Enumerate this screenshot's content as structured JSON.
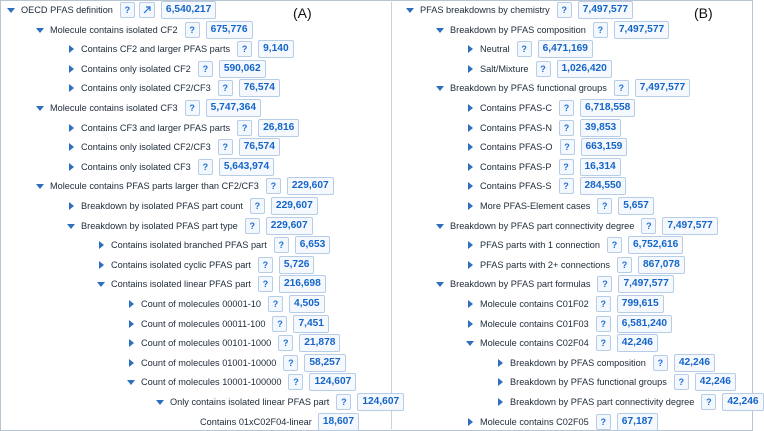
{
  "panels": {
    "left_label": "(A)",
    "right_label": "(B)"
  },
  "icons": {
    "help": "?",
    "expanded": "caret-down-icon",
    "collapsed": "caret-right-icon",
    "open_link": "external-link-icon"
  },
  "colors": {
    "accent": "#1565c9",
    "arrow": "#2f6fbf"
  },
  "left_tree": [
    {
      "label": "OECD PFAS definition",
      "count": "6,540,217",
      "state": "expanded",
      "ext": true
    },
    {
      "label": "Molecule contains isolated CF2",
      "count": "675,776",
      "state": "expanded"
    },
    {
      "label": "Contains CF2 and larger PFAS parts",
      "count": "9,140",
      "state": "collapsed"
    },
    {
      "label": "Contains only isolated CF2",
      "count": "590,062",
      "state": "collapsed"
    },
    {
      "label": "Contains only isolated CF2/CF3",
      "count": "76,574",
      "state": "collapsed"
    },
    {
      "label": "Molecule contains isolated CF3",
      "count": "5,747,364",
      "state": "expanded"
    },
    {
      "label": "Contains CF3 and larger PFAS parts",
      "count": "26,816",
      "state": "collapsed"
    },
    {
      "label": "Contains only isolated CF2/CF3",
      "count": "76,574",
      "state": "collapsed"
    },
    {
      "label": "Contains only isolated CF3",
      "count": "5,643,974",
      "state": "collapsed"
    },
    {
      "label": "Molecule contains PFAS parts larger than CF2/CF3",
      "count": "229,607",
      "state": "expanded"
    },
    {
      "label": "Breakdown by isolated PFAS part count",
      "count": "229,607",
      "state": "collapsed"
    },
    {
      "label": "Breakdown by isolated PFAS part type",
      "count": "229,607",
      "state": "expanded"
    },
    {
      "label": "Contains isolated branched PFAS part",
      "count": "6,653",
      "state": "collapsed"
    },
    {
      "label": "Contains isolated cyclic PFAS part",
      "count": "5,726",
      "state": "collapsed"
    },
    {
      "label": "Contains isolated linear PFAS part",
      "count": "216,698",
      "state": "expanded"
    },
    {
      "label": "Count of molecules 00001-10",
      "count": "4,505",
      "state": "collapsed"
    },
    {
      "label": "Count of molecules 00011-100",
      "count": "7,451",
      "state": "collapsed"
    },
    {
      "label": "Count of molecules 00101-1000",
      "count": "21,878",
      "state": "collapsed"
    },
    {
      "label": "Count of molecules 01001-10000",
      "count": "58,257",
      "state": "collapsed"
    },
    {
      "label": "Count of molecules 10001-100000",
      "count": "124,607",
      "state": "expanded"
    },
    {
      "label": "Only contains isolated linear PFAS part",
      "count": "124,607",
      "state": "expanded"
    },
    {
      "label": "Contains 01xC02F04-linear",
      "count": "18,607",
      "state": "none",
      "nohelp": true
    }
  ],
  "right_tree": [
    {
      "label": "PFAS breakdowns by chemistry",
      "count": "7,497,577",
      "state": "expanded"
    },
    {
      "label": "Breakdown by PFAS composition",
      "count": "7,497,577",
      "state": "expanded"
    },
    {
      "label": "Neutral",
      "count": "6,471,169",
      "state": "collapsed"
    },
    {
      "label": "Salt/Mixture",
      "count": "1,026,420",
      "state": "collapsed"
    },
    {
      "label": "Breakdown by PFAS functional groups",
      "count": "7,497,577",
      "state": "expanded"
    },
    {
      "label": "Contains PFAS-C",
      "count": "6,718,558",
      "state": "collapsed"
    },
    {
      "label": "Contains PFAS-N",
      "count": "39,853",
      "state": "collapsed"
    },
    {
      "label": "Contains PFAS-O",
      "count": "663,159",
      "state": "collapsed"
    },
    {
      "label": "Contains PFAS-P",
      "count": "16,314",
      "state": "collapsed"
    },
    {
      "label": "Contains PFAS-S",
      "count": "284,550",
      "state": "collapsed"
    },
    {
      "label": "More PFAS-Element cases",
      "count": "5,657",
      "state": "collapsed"
    },
    {
      "label": "Breakdown by PFAS part connectivity degree",
      "count": "7,497,577",
      "state": "expanded"
    },
    {
      "label": "PFAS parts with 1 connection",
      "count": "6,752,616",
      "state": "collapsed"
    },
    {
      "label": "PFAS parts with 2+ connections",
      "count": "867,078",
      "state": "collapsed"
    },
    {
      "label": "Breakdown by PFAS part formulas",
      "count": "7,497,577",
      "state": "expanded"
    },
    {
      "label": "Molecule contains C01F02",
      "count": "799,615",
      "state": "collapsed"
    },
    {
      "label": "Molecule contains C01F03",
      "count": "6,581,240",
      "state": "collapsed"
    },
    {
      "label": "Molecule contains C02F04",
      "count": "42,246",
      "state": "expanded"
    },
    {
      "label": "Breakdown by PFAS composition",
      "count": "42,246",
      "state": "collapsed"
    },
    {
      "label": "Breakdown by PFAS functional groups",
      "count": "42,246",
      "state": "collapsed"
    },
    {
      "label": "Breakdown by PFAS part connectivity degree",
      "count": "42,246",
      "state": "collapsed"
    },
    {
      "label": "Molecule contains C02F05",
      "count": "67,187",
      "state": "collapsed"
    }
  ]
}
